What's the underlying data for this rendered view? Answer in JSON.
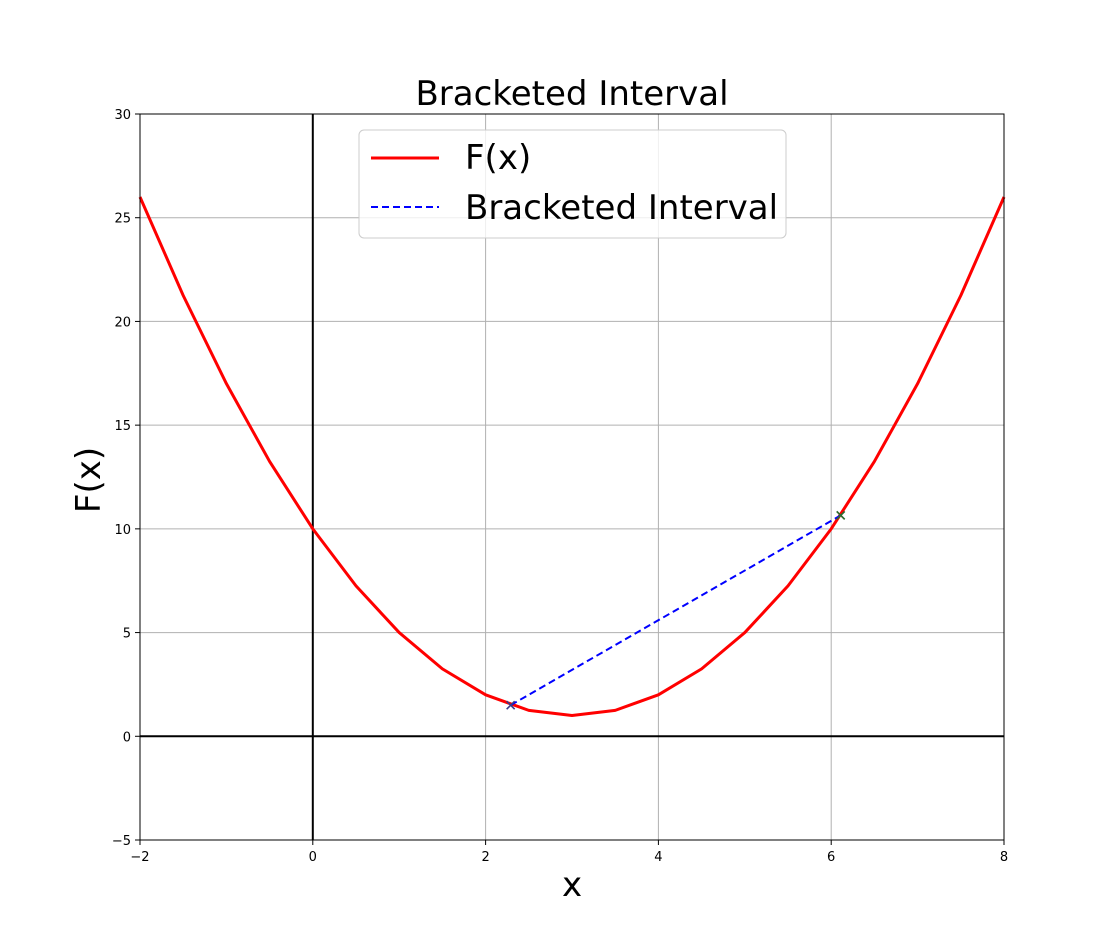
{
  "chart_data": {
    "type": "line",
    "title": "Bracketed Interval",
    "xlabel": "x",
    "ylabel": "F(x)",
    "xlim": [
      -2,
      8
    ],
    "ylim": [
      -5,
      30
    ],
    "xticks": [
      -2,
      0,
      2,
      4,
      6,
      8
    ],
    "yticks": [
      -5,
      0,
      5,
      10,
      15,
      20,
      25,
      30
    ],
    "xtick_labels": [
      "−2",
      "0",
      "2",
      "4",
      "6",
      "8"
    ],
    "ytick_labels": [
      "−5",
      "0",
      "5",
      "10",
      "15",
      "20",
      "25",
      "30"
    ],
    "grid": true,
    "legend_position": "upper center",
    "series": [
      {
        "name": "F(x)",
        "style": "solid",
        "color": "#ff0000",
        "x": [
          -2,
          -1.5,
          -1,
          -0.5,
          0,
          0.5,
          1,
          1.5,
          2,
          2.5,
          3,
          3.5,
          4,
          4.5,
          5,
          5.5,
          6,
          6.5,
          7,
          7.5,
          8
        ],
        "y": [
          26,
          21.25,
          17,
          13.25,
          10,
          7.25,
          5,
          3.25,
          2,
          1.25,
          1,
          1.25,
          2,
          3.25,
          5,
          7.25,
          10,
          13.25,
          17,
          21.25,
          26
        ]
      },
      {
        "name": "Bracketed Interval",
        "style": "dashed",
        "color": "#0000ff",
        "x": [
          2.29,
          6.11
        ],
        "y": [
          1.5,
          10.65
        ]
      }
    ],
    "markers": [
      {
        "x": 2.29,
        "y": 1.5,
        "color": "#3a3a8a",
        "symbol": "x"
      },
      {
        "x": 6.11,
        "y": 10.65,
        "color": "#2e6b2e",
        "symbol": "x"
      }
    ],
    "reference_lines": {
      "x0_axis": true,
      "y0_axis": true
    }
  }
}
